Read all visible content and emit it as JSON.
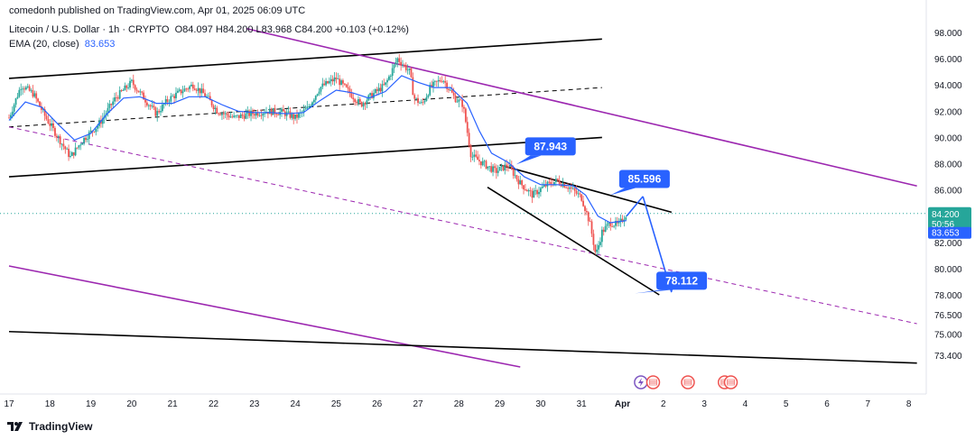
{
  "header": {
    "publish_text": "comedonh published on TradingView.com, Apr 01, 2025 06:09 UTC",
    "symbol": "Litecoin / U.S. Dollar · 1h · CRYPTO",
    "ohlc": "O84.097  H84.200  L83.968  C84.200  +0.103 (+0.12%)",
    "ema_label": "EMA (20, close)",
    "ema_value": "83.653"
  },
  "footer": {
    "brand": "TradingView"
  },
  "colors": {
    "candle_up": "#26a69a",
    "candle_down": "#ef5350",
    "ema": "#2962ff",
    "channel_purple": "#9c27b0",
    "trendline": "#000000",
    "callout": "#2962ff",
    "price_tag_green": "#26a69a"
  },
  "chart_data": {
    "type": "candlestick",
    "symbol": "LTCUSD",
    "interval": "1h",
    "x_labels": [
      "17",
      "18",
      "19",
      "20",
      "21",
      "22",
      "23",
      "24",
      "25",
      "26",
      "27",
      "28",
      "29",
      "30",
      "31",
      "Apr",
      "2",
      "3",
      "4",
      "5",
      "6",
      "7",
      "8"
    ],
    "y_ticks": [
      "98.000",
      "96.000",
      "94.000",
      "92.000",
      "90.000",
      "88.000",
      "86.000",
      "84.200",
      "82.000",
      "80.000",
      "78.000",
      "76.500",
      "75.000",
      "73.400"
    ],
    "ylim": [
      72.5,
      99.0
    ],
    "price_tags": [
      {
        "label": "84.200",
        "sub": "50:56",
        "value": 84.2,
        "color": "#26a69a"
      },
      {
        "label": "83.653",
        "value": 83.653,
        "color": "#2962ff"
      }
    ],
    "annotations": [
      {
        "label": "87.943",
        "x": 29.4,
        "y": 87.943
      },
      {
        "label": "85.596",
        "x": 31.7,
        "y": 85.596
      },
      {
        "label": "78.112",
        "x": 32.3,
        "y": 78.112
      }
    ],
    "price_path": [
      [
        17.0,
        91.5
      ],
      [
        17.3,
        94.0
      ],
      [
        17.6,
        93.3
      ],
      [
        17.9,
        91.5
      ],
      [
        18.2,
        90.0
      ],
      [
        18.5,
        88.5
      ],
      [
        18.8,
        89.8
      ],
      [
        19.2,
        91.0
      ],
      [
        19.6,
        93.0
      ],
      [
        20.0,
        94.2
      ],
      [
        20.3,
        93.0
      ],
      [
        20.6,
        91.8
      ],
      [
        20.9,
        92.9
      ],
      [
        21.2,
        93.5
      ],
      [
        21.5,
        94.0
      ],
      [
        21.8,
        93.2
      ],
      [
        22.1,
        92.0
      ],
      [
        22.5,
        91.5
      ],
      [
        22.9,
        91.8
      ],
      [
        23.3,
        92.0
      ],
      [
        23.7,
        91.9
      ],
      [
        24.0,
        91.5
      ],
      [
        24.3,
        92.2
      ],
      [
        24.6,
        93.8
      ],
      [
        25.0,
        94.5
      ],
      [
        25.3,
        93.5
      ],
      [
        25.6,
        92.5
      ],
      [
        25.9,
        93.3
      ],
      [
        26.2,
        94.0
      ],
      [
        26.5,
        96.0
      ],
      [
        26.8,
        95.0
      ],
      [
        26.9,
        93.0
      ],
      [
        27.1,
        92.5
      ],
      [
        27.3,
        93.8
      ],
      [
        27.6,
        94.5
      ],
      [
        27.9,
        93.0
      ],
      [
        28.1,
        92.5
      ],
      [
        28.3,
        88.6
      ],
      [
        28.6,
        88.0
      ],
      [
        28.9,
        87.4
      ],
      [
        29.2,
        87.9
      ],
      [
        29.5,
        86.5
      ],
      [
        29.8,
        85.6
      ],
      [
        30.1,
        86.3
      ],
      [
        30.4,
        86.7
      ],
      [
        30.7,
        86.2
      ],
      [
        31.0,
        85.4
      ],
      [
        31.2,
        83.5
      ],
      [
        31.35,
        81.0
      ],
      [
        31.5,
        82.8
      ],
      [
        31.7,
        83.5
      ],
      [
        31.9,
        83.3
      ],
      [
        32.1,
        84.2
      ]
    ],
    "ema_path": [
      [
        17.0,
        91.3
      ],
      [
        17.4,
        92.7
      ],
      [
        17.8,
        92.3
      ],
      [
        18.2,
        91.0
      ],
      [
        18.6,
        89.8
      ],
      [
        19.0,
        90.3
      ],
      [
        19.4,
        91.8
      ],
      [
        19.8,
        93.0
      ],
      [
        20.2,
        93.1
      ],
      [
        20.6,
        92.6
      ],
      [
        21.0,
        92.6
      ],
      [
        21.4,
        93.1
      ],
      [
        21.8,
        93.1
      ],
      [
        22.2,
        92.5
      ],
      [
        22.6,
        92.0
      ],
      [
        23.0,
        91.9
      ],
      [
        23.4,
        91.9
      ],
      [
        23.8,
        91.8
      ],
      [
        24.2,
        91.9
      ],
      [
        24.6,
        92.8
      ],
      [
        25.0,
        93.6
      ],
      [
        25.4,
        93.4
      ],
      [
        25.8,
        93.0
      ],
      [
        26.2,
        93.5
      ],
      [
        26.6,
        94.7
      ],
      [
        27.0,
        94.2
      ],
      [
        27.4,
        93.8
      ],
      [
        27.8,
        93.8
      ],
      [
        28.2,
        92.6
      ],
      [
        28.5,
        90.5
      ],
      [
        28.8,
        88.8
      ],
      [
        29.2,
        88.1
      ],
      [
        29.6,
        87.0
      ],
      [
        30.0,
        86.4
      ],
      [
        30.4,
        86.4
      ],
      [
        30.8,
        86.3
      ],
      [
        31.1,
        85.6
      ],
      [
        31.4,
        84.0
      ],
      [
        31.7,
        83.5
      ],
      [
        32.1,
        83.653
      ]
    ],
    "lines": [
      {
        "kind": "channel-upper-black",
        "style": "solid",
        "color": "#000000",
        "from": [
          17.0,
          94.5
        ],
        "to": [
          31.5,
          97.5
        ]
      },
      {
        "kind": "channel-mid-black",
        "style": "dashed",
        "color": "#000000",
        "from": [
          17.0,
          90.8
        ],
        "to": [
          31.5,
          93.8
        ]
      },
      {
        "kind": "channel-lower-black",
        "style": "solid",
        "color": "#000000",
        "from": [
          17.0,
          87.0
        ],
        "to": [
          31.5,
          90.0
        ]
      },
      {
        "kind": "purple-upper",
        "style": "solid",
        "color": "#9c27b0",
        "from": [
          22.8,
          98.3
        ],
        "to": [
          39.2,
          86.3
        ]
      },
      {
        "kind": "purple-mid",
        "style": "dashed",
        "color": "#9c27b0",
        "from": [
          17.0,
          90.8
        ],
        "to": [
          39.2,
          75.8
        ]
      },
      {
        "kind": "purple-lower",
        "style": "solid",
        "color": "#9c27b0",
        "from": [
          17.0,
          80.2
        ],
        "to": [
          29.5,
          72.5
        ]
      },
      {
        "kind": "wedge-top",
        "style": "solid",
        "color": "#000000",
        "from": [
          29.0,
          87.9
        ],
        "to": [
          33.2,
          84.3
        ]
      },
      {
        "kind": "wedge-bottom",
        "style": "solid",
        "color": "#000000",
        "from": [
          28.7,
          86.2
        ],
        "to": [
          32.9,
          78.0
        ]
      },
      {
        "kind": "support-long",
        "style": "solid",
        "color": "#000000",
        "from": [
          17.0,
          75.2
        ],
        "to": [
          39.2,
          72.8
        ]
      },
      {
        "kind": "projection-up",
        "style": "solid",
        "color": "#2962ff",
        "from": [
          32.1,
          84.0
        ],
        "to": [
          32.5,
          85.5
        ]
      },
      {
        "kind": "projection-down",
        "style": "solid",
        "color": "#2962ff",
        "from": [
          32.5,
          85.5
        ],
        "to": [
          33.2,
          78.2
        ]
      }
    ]
  }
}
